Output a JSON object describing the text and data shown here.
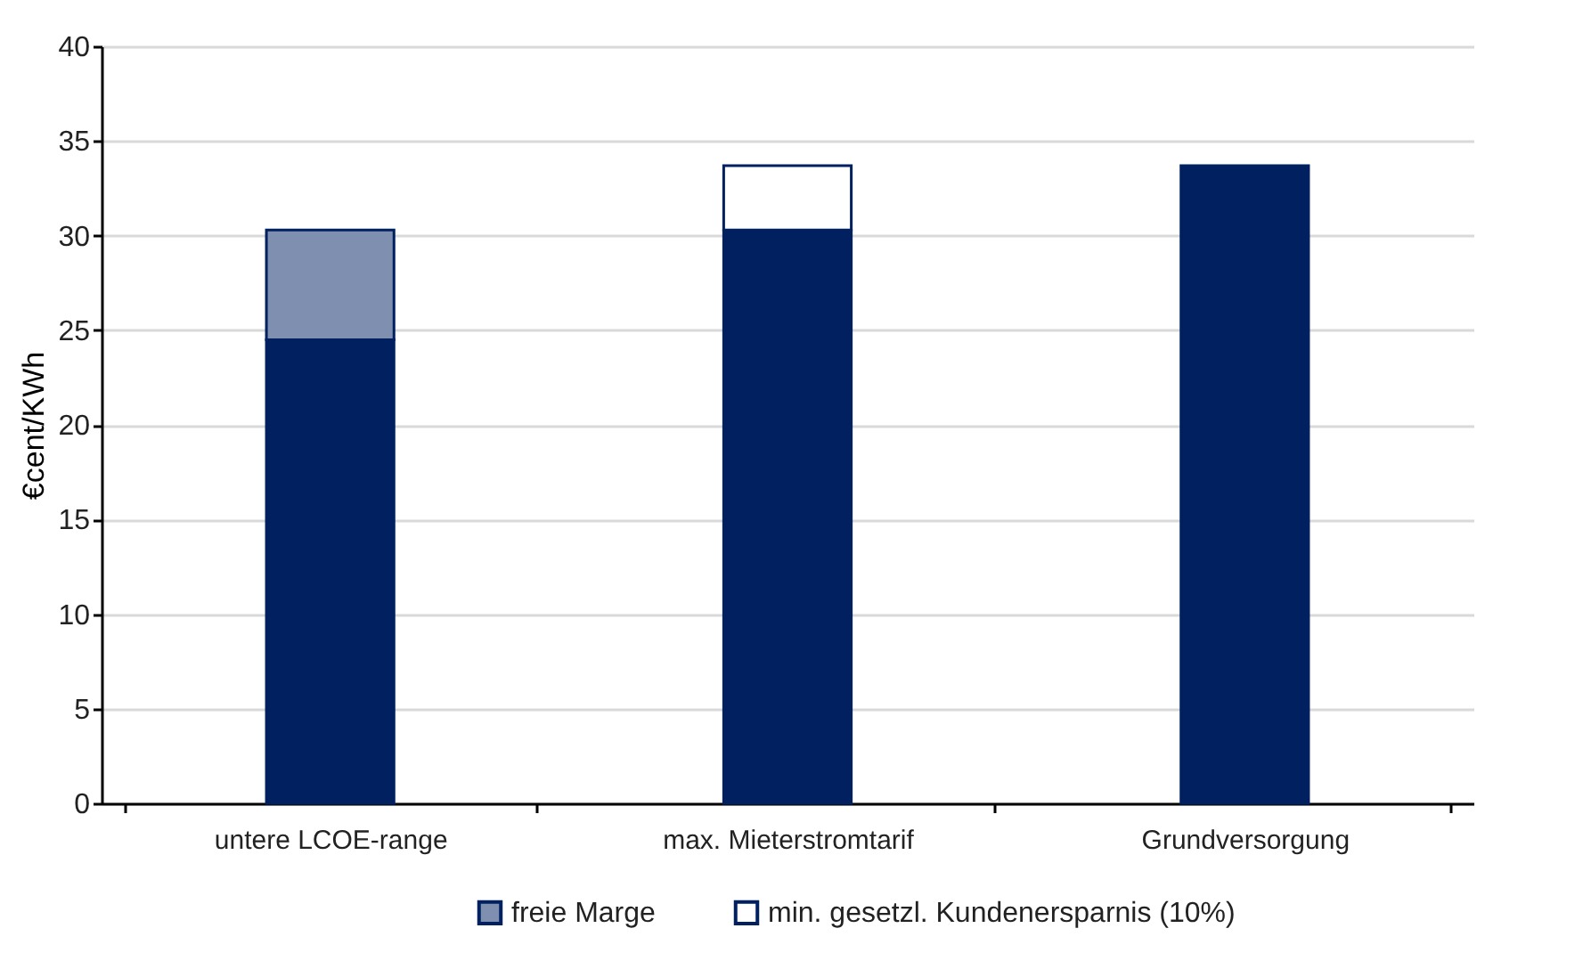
{
  "chart_data": {
    "type": "bar",
    "stacked": true,
    "ylabel": "€cent/KWh",
    "categories": [
      "untere LCOE-range",
      "max. Mieterstromtarif",
      "Grundversorgung"
    ],
    "series": [
      {
        "color": "#002060",
        "values": [
          24.5,
          30.3,
          33.7
        ]
      },
      {
        "name": "freie Marge",
        "color": "#7f8fb0",
        "values": [
          5.8,
          null,
          null
        ]
      },
      {
        "name": "min. gesetzl. Kundenersparnis (10%)",
        "color": "#ffffff",
        "values": [
          null,
          3.4,
          null
        ]
      }
    ],
    "ylim": [
      0,
      40
    ],
    "yticks": [
      0,
      5,
      10,
      15,
      20,
      25,
      30,
      35,
      40
    ],
    "grid": "y",
    "legend": "bottom"
  }
}
